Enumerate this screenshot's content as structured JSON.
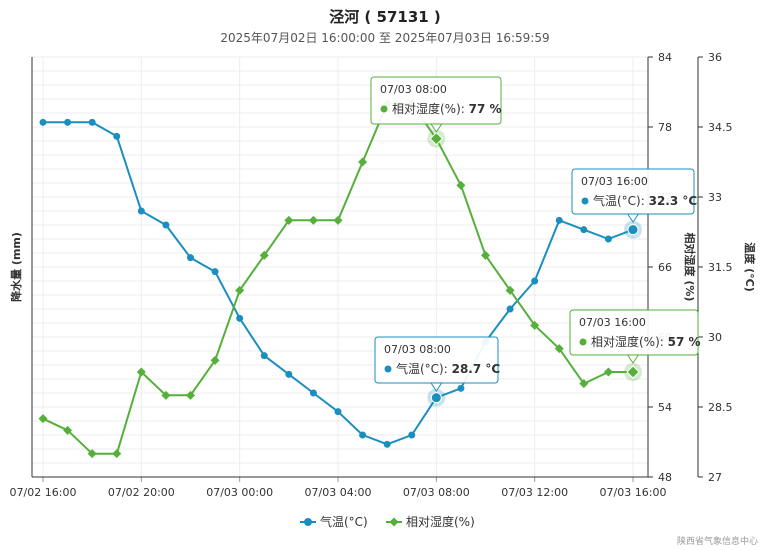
{
  "chart_data": {
    "type": "line",
    "title": "泾河 ( 57131 )",
    "subtitle": "2025年07月02日 16:00:00 至 2025年07月03日 16:59:59",
    "x_ticks": [
      "07/02 16:00",
      "07/02 20:00",
      "07/03 00:00",
      "07/03 04:00",
      "07/03 08:00",
      "07/03 12:00",
      "07/03 16:00"
    ],
    "x": [
      "07/02 16:00",
      "07/02 17:00",
      "07/02 18:00",
      "07/02 19:00",
      "07/02 20:00",
      "07/02 21:00",
      "07/02 22:00",
      "07/02 23:00",
      "07/03 00:00",
      "07/03 01:00",
      "07/03 02:00",
      "07/03 03:00",
      "07/03 04:00",
      "07/03 05:00",
      "07/03 06:00",
      "07/03 07:00",
      "07/03 08:00",
      "07/03 09:00",
      "07/03 10:00",
      "07/03 11:00",
      "07/03 12:00",
      "07/03 13:00",
      "07/03 14:00",
      "07/03 15:00",
      "07/03 16:00"
    ],
    "axes": {
      "left": {
        "title": "降水量 (mm)",
        "ticks": []
      },
      "humidity": {
        "title": "相对湿度 (%)",
        "ticks": [
          "48",
          "54",
          "60",
          "66",
          "72",
          "78",
          "84"
        ],
        "range": [
          48,
          84
        ]
      },
      "temperature": {
        "title": "温度 (°C)",
        "ticks": [
          "27",
          "28.5",
          "30",
          "31.5",
          "33",
          "34.5",
          "36"
        ],
        "range": [
          27,
          36
        ]
      }
    },
    "series": [
      {
        "name": "气温(°C)",
        "color": "#1a8fbf",
        "marker": "circle",
        "axis": "temperature",
        "values": [
          34.6,
          34.6,
          34.6,
          34.3,
          32.7,
          32.4,
          31.7,
          31.4,
          30.4,
          29.6,
          29.2,
          28.8,
          28.4,
          27.9,
          27.7,
          27.9,
          28.7,
          28.9,
          29.9,
          30.6,
          31.2,
          32.5,
          32.3,
          32.1,
          32.3
        ]
      },
      {
        "name": "相对湿度(%)",
        "color": "#55b03a",
        "marker": "diamond",
        "axis": "humidity",
        "values": [
          53,
          52,
          50,
          50,
          57,
          55,
          55,
          58,
          64,
          67,
          70,
          70,
          70,
          75,
          80,
          80,
          77,
          73,
          67,
          64,
          61,
          59,
          56,
          57,
          57
        ]
      }
    ],
    "tooltips": [
      {
        "header": "07/03 08:00",
        "series": "相对湿度(%)",
        "value": "77 %",
        "index": 16
      },
      {
        "header": "07/03 16:00",
        "series": "气温(°C)",
        "value": "32.3 °C",
        "index": 24
      },
      {
        "header": "07/03 16:00",
        "series": "相对湿度(%)",
        "value": "57 %",
        "index": 24
      },
      {
        "header": "07/03 08:00",
        "series": "气温(°C)",
        "value": "28.7 °C",
        "index": 16
      }
    ],
    "legend": {
      "position": "bottom-center",
      "items": [
        "气温(°C)",
        "相对湿度(%)"
      ]
    },
    "grid": true,
    "credit": "陕西省气象信息中心"
  }
}
